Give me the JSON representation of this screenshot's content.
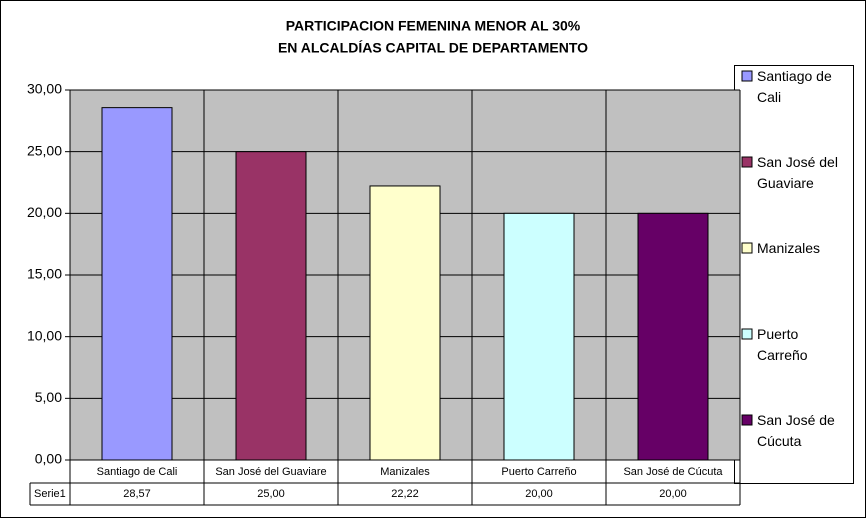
{
  "chart_data": {
    "type": "bar",
    "title": [
      "PARTICIPACION FEMENINA MENOR AL 30%",
      "EN ALCALDÍAS CAPITAL DE DEPARTAMENTO"
    ],
    "categories": [
      "Santiago de Cali",
      "San José del Guaviare",
      "Manizales",
      "Puerto Carreño",
      "San José de Cúcuta"
    ],
    "series": [
      {
        "name": "Serie1",
        "values": [
          28.57,
          25,
          22.22,
          20,
          20
        ],
        "value_labels": [
          "28,57",
          "25,00",
          "22,22",
          "20,00",
          "20,00"
        ]
      }
    ],
    "colors": [
      "#9999ff",
      "#993366",
      "#ffffcc",
      "#ccffff",
      "#660066"
    ],
    "ylim": [
      0,
      30
    ],
    "yticks": [
      {
        "value": 0,
        "label": "0,00"
      },
      {
        "value": 5,
        "label": "5,00"
      },
      {
        "value": 10,
        "label": "10,00"
      },
      {
        "value": 15,
        "label": "15,00"
      },
      {
        "value": 20,
        "label": "20,00"
      },
      {
        "value": 25,
        "label": "25,00"
      },
      {
        "value": 30,
        "label": "30,00"
      }
    ],
    "grid": true,
    "legend": "right"
  }
}
